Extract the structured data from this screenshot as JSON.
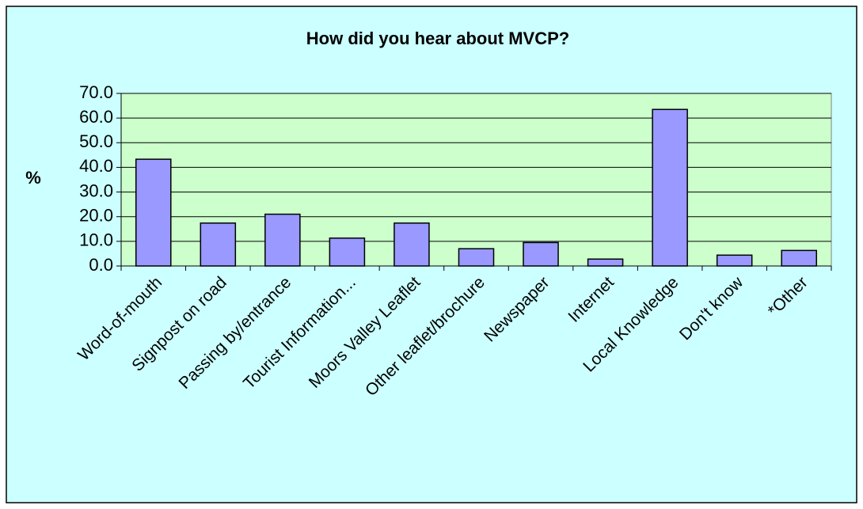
{
  "chart_data": {
    "type": "bar",
    "title": "How did you hear about MVCP?",
    "y_label": "%",
    "categories": [
      "Word-of-mouth",
      "Signpost on road",
      "Passing by/entrance",
      "Tourist Information...",
      "Moors Valley Leaflet",
      "Other leaflet/brochure",
      "Newspaper",
      "Internet",
      "Local Knowledge",
      "Don't know",
      "*Other"
    ],
    "values": [
      43.3,
      17.4,
      21.0,
      11.3,
      17.4,
      7.0,
      9.5,
      2.8,
      63.5,
      4.4,
      6.3
    ],
    "color": "#9999ff",
    "ylim": [
      0,
      70
    ],
    "yticks": [
      {
        "value": 0,
        "label": "0.0"
      },
      {
        "value": 10,
        "label": "10.0"
      },
      {
        "value": 20,
        "label": "20.0"
      },
      {
        "value": 30,
        "label": "30.0"
      },
      {
        "value": 40,
        "label": "40.0"
      },
      {
        "value": 50,
        "label": "50.0"
      },
      {
        "value": 60,
        "label": "60.0"
      },
      {
        "value": 70,
        "label": "70.0"
      }
    ],
    "grid": true
  }
}
